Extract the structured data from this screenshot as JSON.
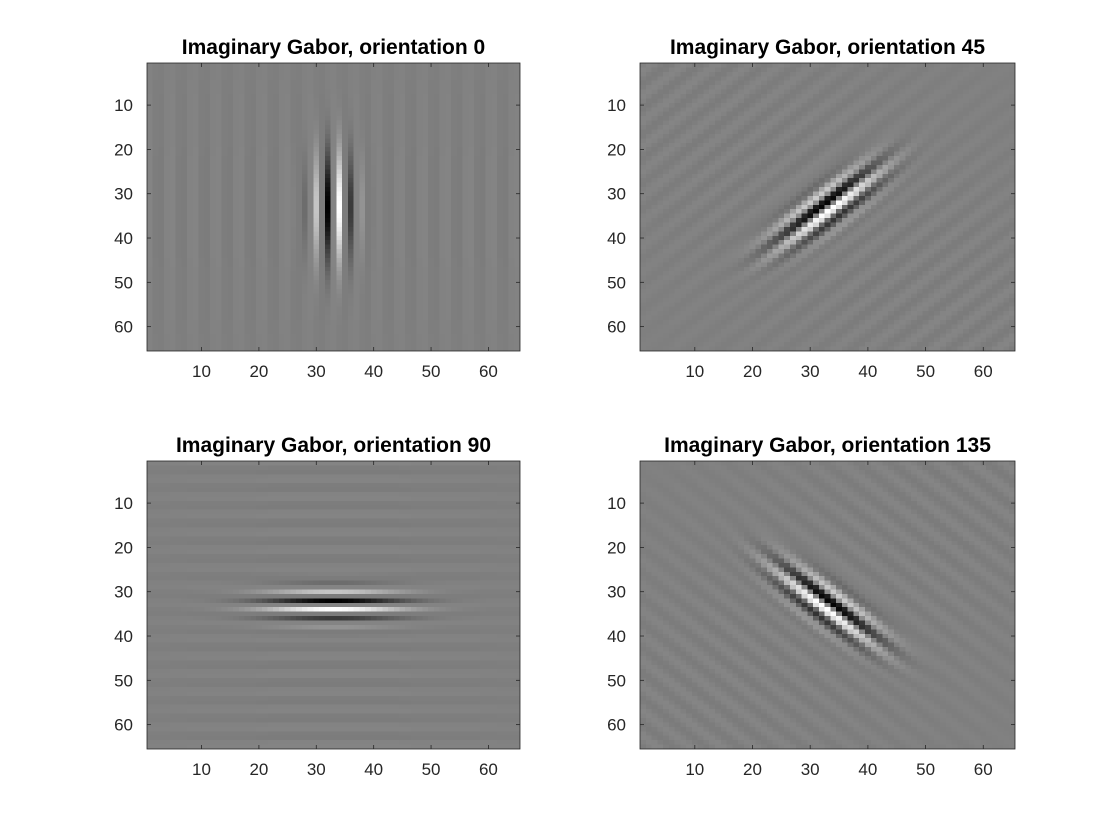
{
  "figure": {
    "background": "#ffffff",
    "colormap": "gray"
  },
  "chart_data": [
    {
      "type": "heatmap",
      "title": "Imaginary Gabor, orientation 0",
      "orientation_deg": 0,
      "xlim": [
        0.5,
        65.5
      ],
      "ylim": [
        0.5,
        65.5
      ],
      "y_reversed": true,
      "x_ticks": [
        10,
        20,
        30,
        40,
        50,
        60
      ],
      "y_ticks": [
        10,
        20,
        30,
        40,
        50,
        60
      ],
      "x_tick_labels": [
        "10",
        "20",
        "30",
        "40",
        "50",
        "60"
      ],
      "y_tick_labels": [
        "10",
        "20",
        "30",
        "40",
        "50",
        "60"
      ],
      "grid": false,
      "center": [
        33,
        33
      ],
      "kernel": "Gabor imaginary part, odd-symmetric, vertical stripes"
    },
    {
      "type": "heatmap",
      "title": "Imaginary Gabor, orientation 45",
      "orientation_deg": 45,
      "xlim": [
        0.5,
        65.5
      ],
      "ylim": [
        0.5,
        65.5
      ],
      "y_reversed": true,
      "x_ticks": [
        10,
        20,
        30,
        40,
        50,
        60
      ],
      "y_ticks": [
        10,
        20,
        30,
        40,
        50,
        60
      ],
      "x_tick_labels": [
        "10",
        "20",
        "30",
        "40",
        "50",
        "60"
      ],
      "y_tick_labels": [
        "10",
        "20",
        "30",
        "40",
        "50",
        "60"
      ],
      "grid": false,
      "center": [
        33,
        33
      ],
      "kernel": "Gabor imaginary part, odd-symmetric, diagonal stripes"
    },
    {
      "type": "heatmap",
      "title": "Imaginary Gabor, orientation 90",
      "orientation_deg": 90,
      "xlim": [
        0.5,
        65.5
      ],
      "ylim": [
        0.5,
        65.5
      ],
      "y_reversed": true,
      "x_ticks": [
        10,
        20,
        30,
        40,
        50,
        60
      ],
      "y_ticks": [
        10,
        20,
        30,
        40,
        50,
        60
      ],
      "x_tick_labels": [
        "10",
        "20",
        "30",
        "40",
        "50",
        "60"
      ],
      "y_tick_labels": [
        "10",
        "20",
        "30",
        "40",
        "50",
        "60"
      ],
      "grid": false,
      "center": [
        33,
        33
      ],
      "kernel": "Gabor imaginary part, odd-symmetric, horizontal stripes"
    },
    {
      "type": "heatmap",
      "title": "Imaginary Gabor, orientation 135",
      "orientation_deg": 135,
      "xlim": [
        0.5,
        65.5
      ],
      "ylim": [
        0.5,
        65.5
      ],
      "y_reversed": true,
      "x_ticks": [
        10,
        20,
        30,
        40,
        50,
        60
      ],
      "y_ticks": [
        10,
        20,
        30,
        40,
        50,
        60
      ],
      "x_tick_labels": [
        "10",
        "20",
        "30",
        "40",
        "50",
        "60"
      ],
      "y_tick_labels": [
        "10",
        "20",
        "30",
        "40",
        "50",
        "60"
      ],
      "grid": false,
      "center": [
        33,
        33
      ],
      "kernel": "Gabor imaginary part, odd-symmetric, anti-diagonal stripes"
    }
  ]
}
